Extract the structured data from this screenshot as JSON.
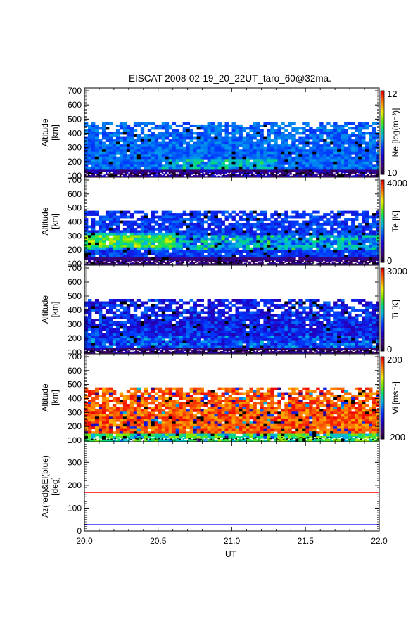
{
  "title": "EISCAT 2008-02-19_20_22UT_taro_60@32ma.",
  "xlabel": "UT",
  "x_ticks": [
    "20.0",
    "20.5",
    "21.0",
    "21.5",
    "22.0"
  ],
  "chart_data": [
    {
      "type": "heatmap",
      "ylabel_line1": "Altitude",
      "ylabel_line2": "[km]",
      "xlim": [
        20.0,
        22.0
      ],
      "ylim": [
        90,
        720
      ],
      "y_ticks": [
        "100",
        "200",
        "300",
        "400",
        "500",
        "600",
        "700"
      ],
      "colorbar_label": "Ne [log(m⁻³)]",
      "colorbar_max": "12",
      "colorbar_min": "10",
      "range": [
        10,
        12
      ],
      "data_top_km": 480
    },
    {
      "type": "heatmap",
      "ylabel_line1": "Altitude",
      "ylabel_line2": "[km]",
      "xlim": [
        20.0,
        22.0
      ],
      "ylim": [
        90,
        720
      ],
      "y_ticks": [
        "100",
        "200",
        "300",
        "400",
        "500",
        "600",
        "700"
      ],
      "colorbar_label": "Te [K]",
      "colorbar_max": "4000",
      "colorbar_min": "0",
      "range": [
        0,
        4000
      ],
      "data_top_km": 480
    },
    {
      "type": "heatmap",
      "ylabel_line1": "Altitude",
      "ylabel_line2": "[km]",
      "xlim": [
        20.0,
        22.0
      ],
      "ylim": [
        90,
        720
      ],
      "y_ticks": [
        "100",
        "200",
        "300",
        "400",
        "500",
        "600",
        "700"
      ],
      "colorbar_label": "Ti [K]",
      "colorbar_max": "3000",
      "colorbar_min": "0",
      "range": [
        0,
        3000
      ],
      "data_top_km": 480
    },
    {
      "type": "heatmap",
      "ylabel_line1": "Altitude",
      "ylabel_line2": "[km]",
      "xlim": [
        20.0,
        22.0
      ],
      "ylim": [
        90,
        720
      ],
      "y_ticks": [
        "100",
        "200",
        "300",
        "400",
        "500",
        "600",
        "700"
      ],
      "colorbar_label": "Vi [ms⁻¹]",
      "colorbar_max": "200",
      "colorbar_min": "-200",
      "range": [
        -200,
        200
      ],
      "data_top_km": 480
    },
    {
      "type": "line",
      "ylabel_line1": "Az(red)&El(blue)",
      "ylabel_line2": "[deg]",
      "xlim": [
        20.0,
        22.0
      ],
      "ylim": [
        0,
        390
      ],
      "y_ticks": [
        "0",
        "100",
        "200",
        "300"
      ],
      "series": [
        {
          "color": "#ff0000",
          "x": [
            20.0,
            22.0
          ],
          "values": [
            168,
            168
          ]
        },
        {
          "color": "#0000ff",
          "x": [
            20.0,
            22.0
          ],
          "values": [
            28,
            28
          ]
        }
      ]
    }
  ]
}
